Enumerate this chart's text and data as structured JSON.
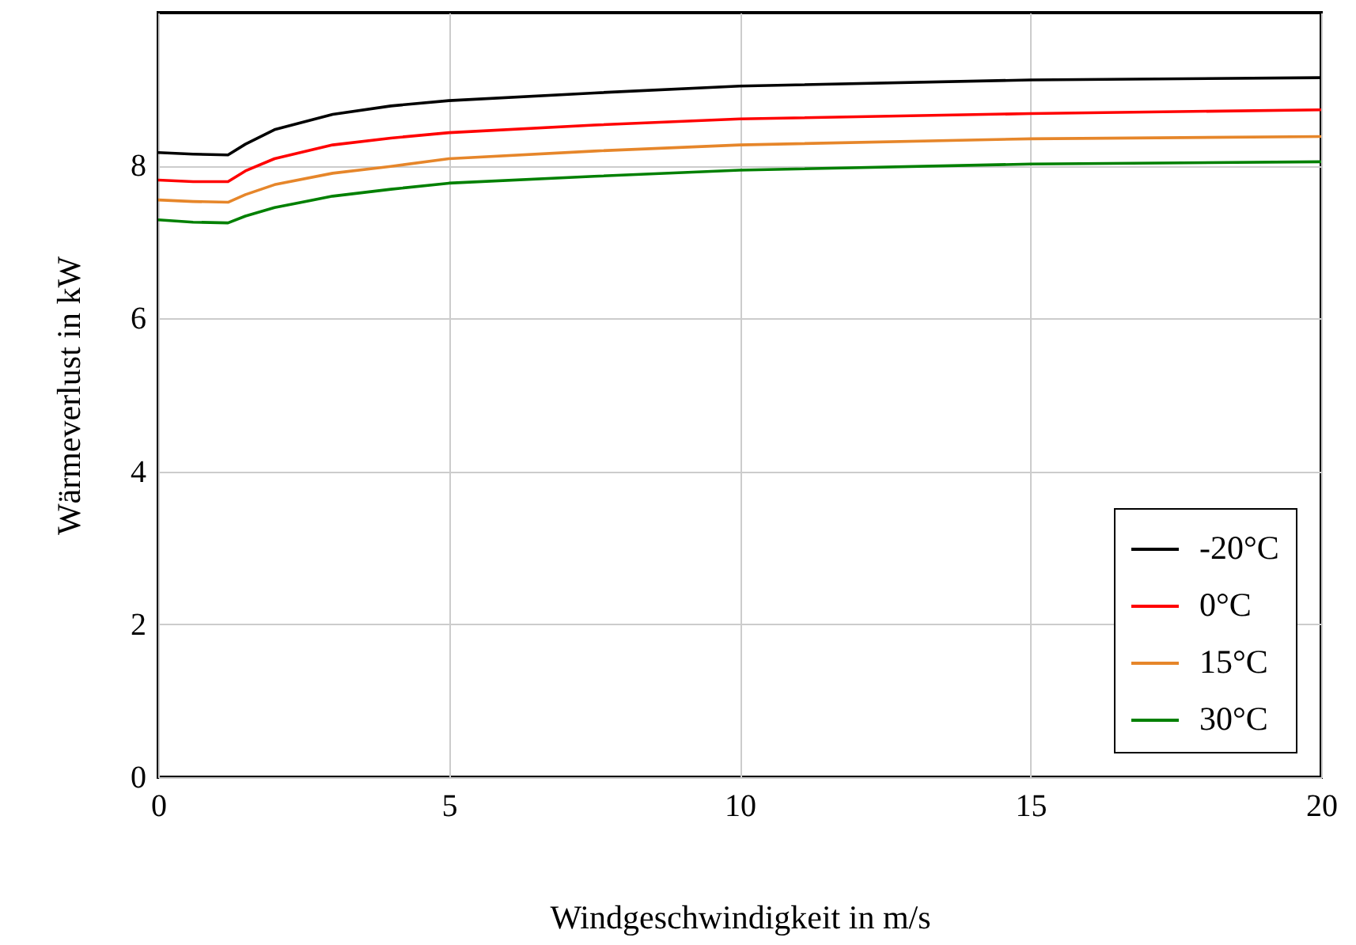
{
  "chart_data": {
    "type": "line",
    "xlabel": "Windgeschwindigkeit in m/s",
    "ylabel": "Wärmeverlust in kW",
    "x": [
      0,
      0.6,
      1.2,
      1.5,
      2,
      3,
      4,
      5,
      7.5,
      10,
      15,
      20
    ],
    "series": [
      {
        "name": "-20°C",
        "color": "#000000",
        "values": [
          8.17,
          8.15,
          8.14,
          8.28,
          8.47,
          8.67,
          8.78,
          8.85,
          8.95,
          9.04,
          9.12,
          9.15
        ]
      },
      {
        "name": "0°C",
        "color": "#ff0000",
        "values": [
          7.81,
          7.79,
          7.79,
          7.93,
          8.09,
          8.27,
          8.36,
          8.43,
          8.53,
          8.61,
          8.68,
          8.73
        ]
      },
      {
        "name": "15°C",
        "color": "#e6862a",
        "values": [
          7.55,
          7.53,
          7.52,
          7.62,
          7.75,
          7.9,
          7.99,
          8.09,
          8.19,
          8.27,
          8.35,
          8.38
        ]
      },
      {
        "name": "30°C",
        "color": "#008000",
        "values": [
          7.29,
          7.26,
          7.25,
          7.34,
          7.45,
          7.6,
          7.69,
          7.77,
          7.86,
          7.94,
          8.02,
          8.05
        ]
      }
    ],
    "xlim": [
      0,
      20
    ],
    "xticks": [
      0,
      5,
      10,
      15,
      20
    ],
    "ylim": [
      0,
      10
    ],
    "yticks": [
      0,
      2,
      4,
      6,
      8
    ],
    "grid": true,
    "legend": "bottom right",
    "line_style": "solid",
    "marker": "none"
  }
}
